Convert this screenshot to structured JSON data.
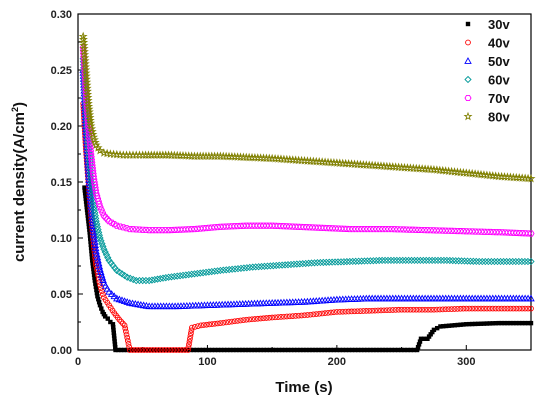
{
  "chart_data": {
    "type": "scatter",
    "xlabel": "Time (s)",
    "ylabel_main": "current density(A/cm",
    "ylabel_sup": "2",
    "ylabel_close": ")",
    "xlim": [
      0,
      350
    ],
    "ylim": [
      0,
      0.3
    ],
    "x_ticks": [
      0,
      100,
      200,
      300
    ],
    "x_tick_labels": [
      "0",
      "100",
      "200",
      "300"
    ],
    "y_ticks": [
      0,
      0.05,
      0.1,
      0.15,
      0.2,
      0.25,
      0.3
    ],
    "y_tick_labels": [
      "0.00",
      "0.05",
      "0.10",
      "0.15",
      "0.20",
      "0.25",
      "0.30"
    ],
    "legend_position": "top-right",
    "grid": false,
    "series": [
      {
        "name": "30v",
        "marker": "square",
        "color": "#000000",
        "points": [
          [
            5,
            0.145
          ],
          [
            7,
            0.125
          ],
          [
            9,
            0.105
          ],
          [
            11,
            0.08
          ],
          [
            13,
            0.062
          ],
          [
            15,
            0.048
          ],
          [
            17,
            0.04
          ],
          [
            19,
            0.034
          ],
          [
            21,
            0.03
          ],
          [
            23,
            0.028
          ],
          [
            25,
            0.025
          ],
          [
            27,
            0.023
          ],
          [
            29,
            0.0
          ],
          [
            40,
            0.0
          ],
          [
            80,
            0.0
          ],
          [
            120,
            0.0
          ],
          [
            160,
            0.0
          ],
          [
            200,
            0.0
          ],
          [
            240,
            0.0
          ],
          [
            262,
            0.0
          ],
          [
            265,
            0.01
          ],
          [
            270,
            0.01
          ],
          [
            275,
            0.018
          ],
          [
            280,
            0.021
          ],
          [
            300,
            0.023
          ],
          [
            325,
            0.024
          ],
          [
            350,
            0.024
          ]
        ]
      },
      {
        "name": "40v",
        "marker": "circle",
        "color": "#ff0000",
        "points": [
          [
            4,
            0.22
          ],
          [
            6,
            0.18
          ],
          [
            8,
            0.15
          ],
          [
            10,
            0.12
          ],
          [
            12,
            0.095
          ],
          [
            14,
            0.075
          ],
          [
            17,
            0.058
          ],
          [
            20,
            0.047
          ],
          [
            24,
            0.04
          ],
          [
            28,
            0.033
          ],
          [
            32,
            0.027
          ],
          [
            36,
            0.022
          ],
          [
            40,
            0.0
          ],
          [
            60,
            0.0
          ],
          [
            85,
            0.0
          ],
          [
            88,
            0.02
          ],
          [
            95,
            0.022
          ],
          [
            110,
            0.024
          ],
          [
            130,
            0.027
          ],
          [
            150,
            0.029
          ],
          [
            175,
            0.031
          ],
          [
            200,
            0.034
          ],
          [
            225,
            0.035
          ],
          [
            250,
            0.036
          ],
          [
            275,
            0.036
          ],
          [
            300,
            0.037
          ],
          [
            325,
            0.037
          ],
          [
            350,
            0.037
          ]
        ]
      },
      {
        "name": "50v",
        "marker": "triangle",
        "color": "#0000ff",
        "points": [
          [
            4,
            0.25
          ],
          [
            6,
            0.2
          ],
          [
            8,
            0.16
          ],
          [
            10,
            0.13
          ],
          [
            12,
            0.105
          ],
          [
            14,
            0.088
          ],
          [
            17,
            0.072
          ],
          [
            20,
            0.06
          ],
          [
            24,
            0.052
          ],
          [
            30,
            0.046
          ],
          [
            40,
            0.042
          ],
          [
            55,
            0.039
          ],
          [
            75,
            0.039
          ],
          [
            100,
            0.04
          ],
          [
            125,
            0.041
          ],
          [
            150,
            0.042
          ],
          [
            175,
            0.043
          ],
          [
            200,
            0.045
          ],
          [
            225,
            0.046
          ],
          [
            250,
            0.046
          ],
          [
            275,
            0.046
          ],
          [
            300,
            0.046
          ],
          [
            325,
            0.046
          ],
          [
            350,
            0.046
          ]
        ]
      },
      {
        "name": "60v",
        "marker": "diamond",
        "color": "#009999",
        "points": [
          [
            4,
            0.26
          ],
          [
            6,
            0.22
          ],
          [
            8,
            0.185
          ],
          [
            10,
            0.155
          ],
          [
            12,
            0.13
          ],
          [
            14,
            0.115
          ],
          [
            17,
            0.1
          ],
          [
            20,
            0.09
          ],
          [
            24,
            0.08
          ],
          [
            30,
            0.071
          ],
          [
            38,
            0.065
          ],
          [
            45,
            0.062
          ],
          [
            55,
            0.062
          ],
          [
            70,
            0.065
          ],
          [
            90,
            0.068
          ],
          [
            110,
            0.071
          ],
          [
            135,
            0.074
          ],
          [
            160,
            0.076
          ],
          [
            185,
            0.078
          ],
          [
            210,
            0.079
          ],
          [
            235,
            0.08
          ],
          [
            260,
            0.08
          ],
          [
            285,
            0.08
          ],
          [
            310,
            0.079
          ],
          [
            350,
            0.079
          ]
        ]
      },
      {
        "name": "70v",
        "marker": "hexagon",
        "color": "#ff00ff",
        "points": [
          [
            4,
            0.27
          ],
          [
            6,
            0.23
          ],
          [
            8,
            0.2
          ],
          [
            10,
            0.175
          ],
          [
            12,
            0.155
          ],
          [
            14,
            0.14
          ],
          [
            17,
            0.128
          ],
          [
            20,
            0.12
          ],
          [
            24,
            0.115
          ],
          [
            30,
            0.111
          ],
          [
            40,
            0.108
          ],
          [
            55,
            0.107
          ],
          [
            70,
            0.107
          ],
          [
            90,
            0.108
          ],
          [
            110,
            0.11
          ],
          [
            130,
            0.111
          ],
          [
            150,
            0.111
          ],
          [
            170,
            0.11
          ],
          [
            190,
            0.109
          ],
          [
            210,
            0.108
          ],
          [
            240,
            0.108
          ],
          [
            270,
            0.107
          ],
          [
            300,
            0.106
          ],
          [
            330,
            0.105
          ],
          [
            350,
            0.104
          ]
        ]
      },
      {
        "name": "80v",
        "marker": "star",
        "color": "#808000",
        "points": [
          [
            4,
            0.28
          ],
          [
            6,
            0.25
          ],
          [
            8,
            0.22
          ],
          [
            10,
            0.2
          ],
          [
            12,
            0.19
          ],
          [
            14,
            0.183
          ],
          [
            17,
            0.178
          ],
          [
            20,
            0.176
          ],
          [
            25,
            0.175
          ],
          [
            35,
            0.174
          ],
          [
            50,
            0.174
          ],
          [
            70,
            0.174
          ],
          [
            90,
            0.173
          ],
          [
            110,
            0.173
          ],
          [
            130,
            0.172
          ],
          [
            150,
            0.171
          ],
          [
            175,
            0.169
          ],
          [
            200,
            0.167
          ],
          [
            225,
            0.165
          ],
          [
            250,
            0.163
          ],
          [
            275,
            0.161
          ],
          [
            300,
            0.158
          ],
          [
            325,
            0.155
          ],
          [
            350,
            0.153
          ]
        ]
      }
    ]
  }
}
